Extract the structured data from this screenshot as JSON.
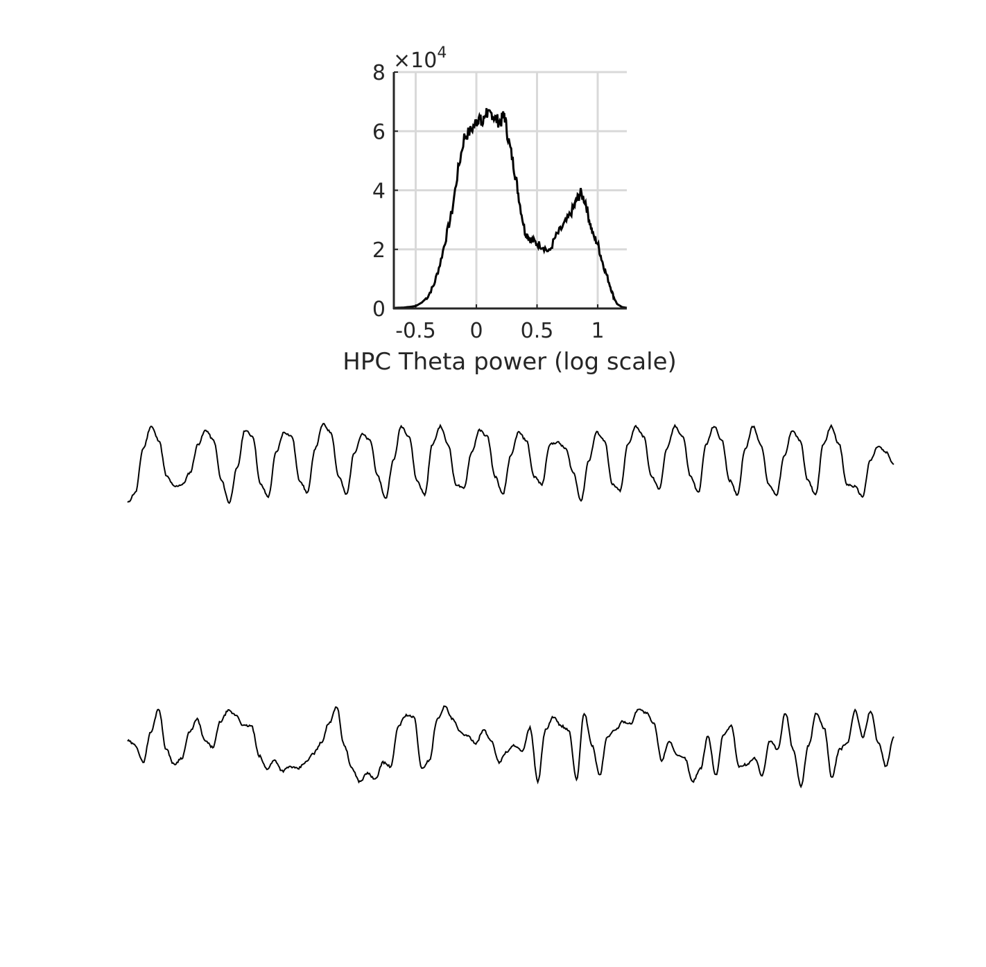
{
  "chart_data": [
    {
      "type": "line",
      "xlabel": "HPC Theta power (log scale)",
      "ylabel": "",
      "xlim": [
        -0.68,
        1.24
      ],
      "ylim": [
        0,
        8
      ],
      "xticks": [
        -0.5,
        0,
        0.5,
        1
      ],
      "xtick_labels": [
        "-0.5",
        "0",
        "0.5",
        "1"
      ],
      "yticks": [
        0,
        2,
        4,
        6,
        8
      ],
      "ytick_labels": [
        "0",
        "2",
        "4",
        "6",
        "8"
      ],
      "y_multiplier": {
        "base": "×10",
        "exponent": "4"
      },
      "grid": true,
      "line_color": "#000000",
      "series": [
        {
          "x": [
            -0.68,
            -0.6,
            -0.5,
            -0.45,
            -0.4,
            -0.35,
            -0.3,
            -0.25,
            -0.2,
            -0.15,
            -0.1,
            -0.05,
            0.0,
            0.02,
            0.05,
            0.08,
            0.1,
            0.13,
            0.16,
            0.2,
            0.23,
            0.26,
            0.3,
            0.33,
            0.36,
            0.4,
            0.43,
            0.46,
            0.5,
            0.55,
            0.6,
            0.65,
            0.7,
            0.75,
            0.8,
            0.83,
            0.86,
            0.9,
            0.93,
            0.96,
            1.0,
            1.03,
            1.06,
            1.1,
            1.13,
            1.16,
            1.2,
            1.24
          ],
          "y": [
            0.02,
            0.03,
            0.08,
            0.2,
            0.4,
            0.8,
            1.5,
            2.4,
            3.3,
            4.7,
            5.8,
            6.0,
            6.3,
            6.5,
            6.2,
            6.7,
            6.5,
            6.6,
            6.4,
            6.3,
            6.6,
            5.8,
            5.0,
            4.3,
            3.5,
            2.6,
            2.4,
            2.3,
            2.2,
            2.1,
            1.9,
            2.4,
            2.7,
            3.0,
            3.4,
            3.7,
            3.9,
            3.6,
            3.0,
            2.5,
            2.2,
            1.7,
            1.3,
            0.8,
            0.4,
            0.15,
            0.05,
            0.02
          ]
        }
      ]
    },
    {
      "type": "line",
      "title": "",
      "xlabel": "",
      "ylabel": "",
      "axes": false,
      "line_color": "#000000",
      "series": [
        {
          "values": [
            -0.95,
            -0.7,
            0.4,
            0.95,
            0.6,
            -0.3,
            -0.55,
            -0.5,
            -0.2,
            0.5,
            0.85,
            0.6,
            -0.4,
            -0.95,
            -0.1,
            0.85,
            0.7,
            -0.5,
            -0.8,
            0.3,
            0.8,
            0.7,
            -0.4,
            -0.7,
            0.4,
            1.0,
            0.8,
            -0.3,
            -0.75,
            0.3,
            0.75,
            0.6,
            -0.3,
            -0.85,
            0.1,
            0.95,
            0.7,
            -0.4,
            -0.75,
            0.5,
            0.95,
            0.5,
            -0.5,
            -0.6,
            0.3,
            0.85,
            0.7,
            -0.3,
            -0.75,
            0.2,
            0.8,
            0.6,
            -0.3,
            -0.5,
            0.5,
            0.55,
            0.4,
            -0.2,
            -0.9,
            0.1,
            0.8,
            0.6,
            -0.5,
            -0.65,
            0.5,
            0.95,
            0.7,
            -0.3,
            -0.6,
            0.4,
            0.95,
            0.7,
            -0.3,
            -0.7,
            0.5,
            0.95,
            0.6,
            -0.4,
            -0.75,
            0.4,
            0.95,
            0.5,
            -0.5,
            -0.75,
            0.2,
            0.85,
            0.6,
            -0.4,
            -0.75,
            0.5,
            0.95,
            0.5,
            -0.5,
            -0.55,
            -0.8,
            0.1,
            0.45,
            0.3,
            0.0
          ]
        }
      ]
    },
    {
      "type": "line",
      "title": "",
      "xlabel": "",
      "ylabel": "",
      "axes": false,
      "line_color": "#000000",
      "series": [
        {
          "values": [
            0.1,
            0.0,
            -0.4,
            0.3,
            0.85,
            -0.1,
            -0.45,
            -0.3,
            0.3,
            0.6,
            0.1,
            -0.05,
            0.55,
            0.8,
            0.7,
            0.45,
            0.45,
            -0.25,
            -0.55,
            -0.35,
            -0.6,
            -0.5,
            -0.55,
            -0.4,
            -0.2,
            0.05,
            0.5,
            0.9,
            0.0,
            -0.55,
            -0.85,
            -0.65,
            -0.8,
            -0.4,
            -0.5,
            0.45,
            0.7,
            0.65,
            -0.55,
            -0.35,
            0.6,
            0.9,
            0.6,
            0.3,
            0.2,
            0.05,
            0.35,
            0.1,
            -0.4,
            -0.15,
            0.0,
            -0.15,
            0.4,
            -0.85,
            0.35,
            0.65,
            0.45,
            0.35,
            -0.8,
            0.75,
            0.0,
            -0.7,
            0.2,
            0.35,
            0.55,
            0.5,
            0.85,
            0.75,
            0.5,
            -0.35,
            0.1,
            -0.25,
            -0.3,
            -0.85,
            -0.55,
            0.2,
            -0.7,
            0.25,
            0.45,
            -0.5,
            -0.45,
            -0.3,
            -0.7,
            0.1,
            -0.1,
            0.75,
            -0.1,
            -0.95,
            0.0,
            0.75,
            0.4,
            -0.75,
            -0.1,
            0.05,
            0.8,
            0.2,
            0.8,
            0.05,
            -0.5,
            0.2
          ]
        }
      ]
    }
  ]
}
